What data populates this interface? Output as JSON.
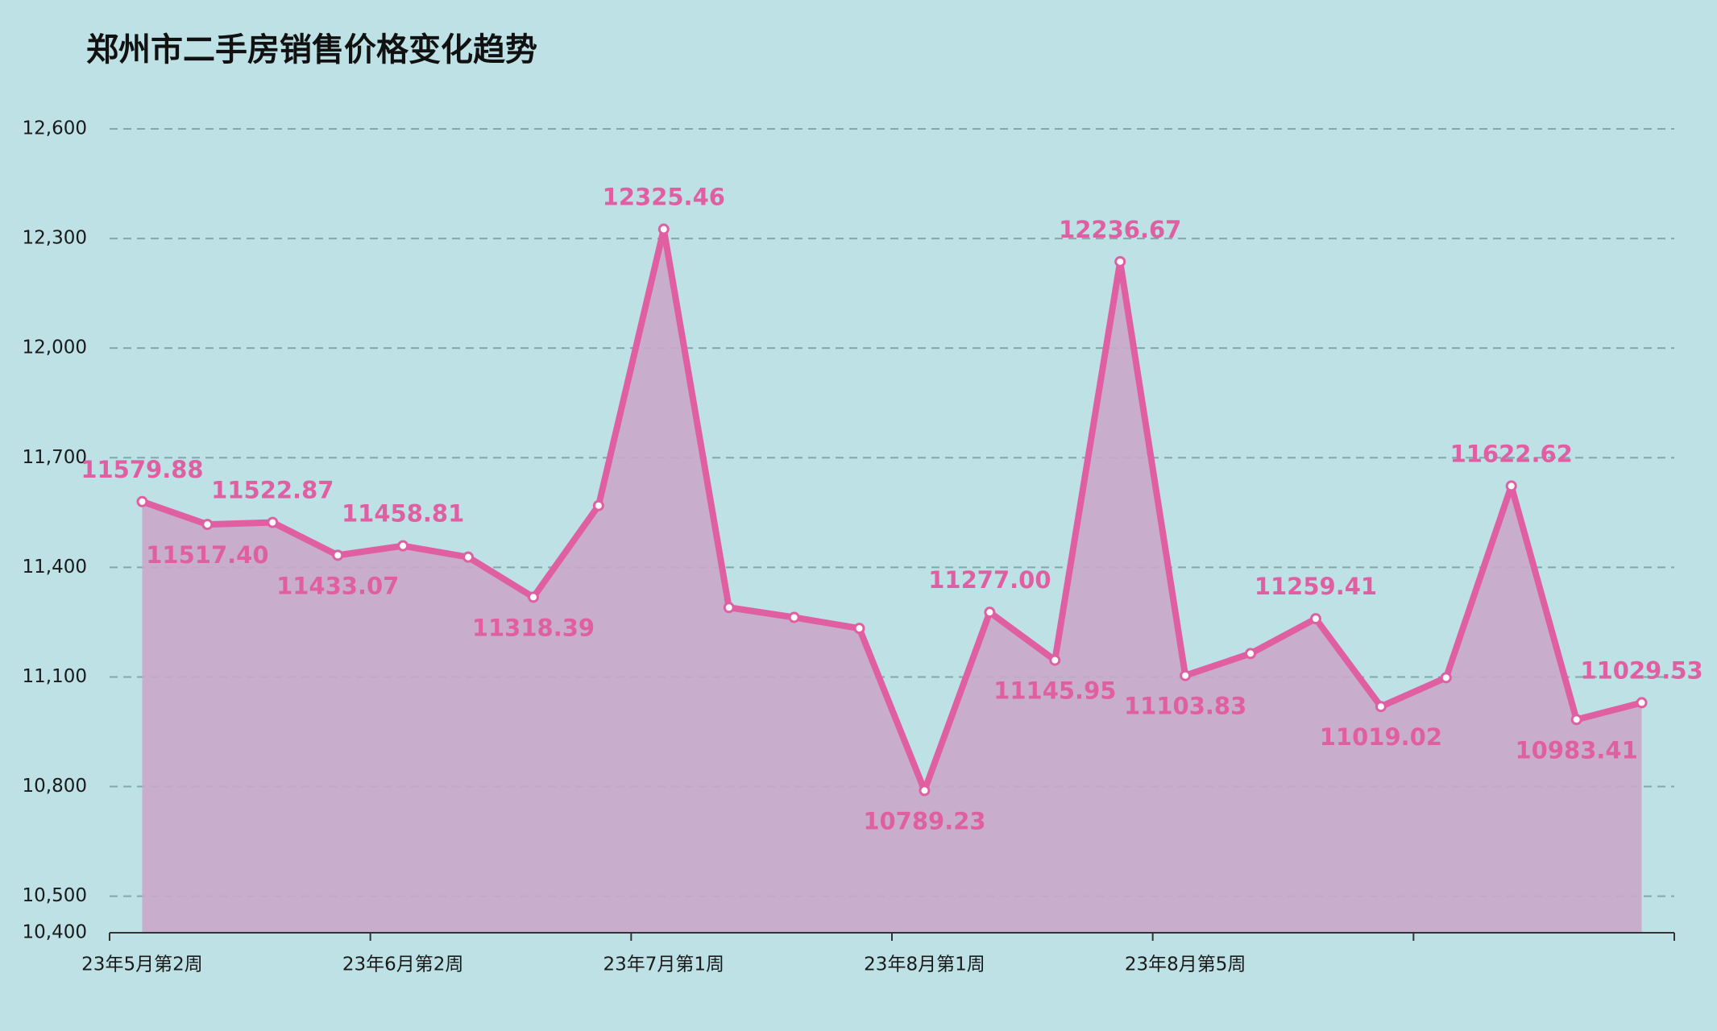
{
  "chart_data": {
    "type": "area-line",
    "title": "郑州市二手房销售价格变化趋势",
    "categories": [
      "23年5月第2周",
      null,
      null,
      null,
      "23年6月第2周",
      null,
      null,
      null,
      "23年7月第1周",
      null,
      null,
      null,
      "23年8月第1周",
      null,
      null,
      null,
      "23年8月第5周",
      null,
      null,
      null,
      null,
      null,
      null,
      null
    ],
    "values": [
      11579.88,
      11517.4,
      11522.87,
      11433.07,
      11458.81,
      11428,
      11318.39,
      11569,
      12325.46,
      11290,
      11263,
      11233,
      10789.23,
      11277.0,
      11145.95,
      12236.67,
      11103.83,
      11164,
      11259.41,
      11019.02,
      11098,
      11622.62,
      10983.41,
      11029.53
    ],
    "value_labels": [
      "11579.88",
      "11517.40",
      "11522.87",
      "11433.07",
      "11458.81",
      null,
      "11318.39",
      null,
      "12325.46",
      null,
      null,
      null,
      "10789.23",
      "11277.00",
      "11145.95",
      "12236.67",
      "11103.83",
      null,
      "11259.41",
      "11019.02",
      null,
      "11622.62",
      "10983.41",
      "11029.53"
    ],
    "color": "#e05fa3",
    "fill_color": "#c9a9c9",
    "ylim": [
      10400,
      12600
    ],
    "yticks": [
      {
        "value": 10400,
        "label": "10,400"
      },
      {
        "value": 10500,
        "label": "10,500"
      },
      {
        "value": 10800,
        "label": "10,800"
      },
      {
        "value": 11100,
        "label": "11,100"
      },
      {
        "value": 11400,
        "label": "11,400"
      },
      {
        "value": 11700,
        "label": "11,700"
      },
      {
        "value": 12000,
        "label": "12,000"
      },
      {
        "value": 12300,
        "label": "12,300"
      },
      {
        "value": 12600,
        "label": "12,600"
      }
    ],
    "grid": true
  }
}
